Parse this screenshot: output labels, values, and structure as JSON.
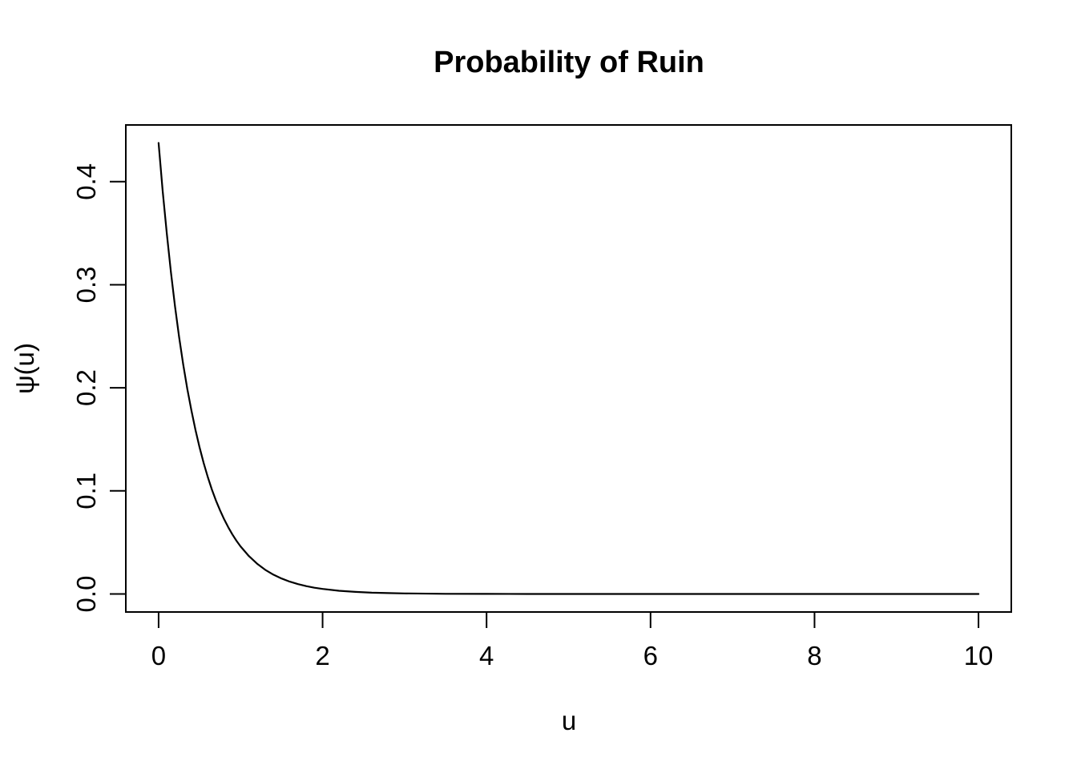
{
  "page": {
    "background": "#ffffff"
  },
  "chart_data": {
    "type": "line",
    "title": "Probability of Ruin",
    "xlabel": "u",
    "ylabel": "ψ(u)",
    "x_ticks": [
      0,
      2,
      4,
      6,
      8,
      10
    ],
    "x_tick_labels": [
      "0",
      "2",
      "4",
      "6",
      "8",
      "10"
    ],
    "y_ticks": [
      0.0,
      0.1,
      0.2,
      0.3,
      0.4
    ],
    "y_tick_labels": [
      "0.0",
      "0.1",
      "0.2",
      "0.3",
      "0.4"
    ],
    "xlim": [
      -0.4,
      10.4
    ],
    "ylim": [
      -0.0175,
      0.455
    ],
    "grid": false,
    "legend_position": "none",
    "line_color": "#000000",
    "text_color": "#000000",
    "background_color": "#ffffff",
    "series": [
      {
        "name": "psi(u)",
        "points": [
          [
            0.0,
            0.4375
          ],
          [
            0.05,
            0.39095
          ],
          [
            0.1,
            0.349351
          ],
          [
            0.15,
            0.312173
          ],
          [
            0.2,
            0.278962
          ],
          [
            0.25,
            0.24928
          ],
          [
            0.3,
            0.222756
          ],
          [
            0.35,
            0.199055
          ],
          [
            0.4,
            0.177874
          ],
          [
            0.45,
            0.158948
          ],
          [
            0.5,
            0.142035
          ],
          [
            0.55,
            0.126922
          ],
          [
            0.6,
            0.113418
          ],
          [
            0.65,
            0.10135
          ],
          [
            0.7,
            0.090566
          ],
          [
            0.75,
            0.08093
          ],
          [
            0.8,
            0.072318
          ],
          [
            0.85,
            0.064624
          ],
          [
            0.9,
            0.057747
          ],
          [
            0.95,
            0.051603
          ],
          [
            1.0,
            0.046112
          ],
          [
            1.1,
            0.036822
          ],
          [
            1.2,
            0.029403
          ],
          [
            1.3,
            0.023479
          ],
          [
            1.4,
            0.018748
          ],
          [
            1.5,
            0.014971
          ],
          [
            1.6,
            0.011954
          ],
          [
            1.7,
            0.009545
          ],
          [
            1.8,
            0.007622
          ],
          [
            1.9,
            0.006086
          ],
          [
            2.0,
            0.00486
          ],
          [
            2.2,
            0.003099
          ],
          [
            2.4,
            0.001976
          ],
          [
            2.6,
            0.00126
          ],
          [
            2.8,
            0.000803
          ],
          [
            3.0,
            0.000512
          ],
          [
            3.5,
            0.000166
          ],
          [
            4.0,
            5.4e-05
          ],
          [
            4.5,
            1.75e-05
          ],
          [
            5.0,
            5.7e-06
          ],
          [
            5.5,
            1.8e-06
          ],
          [
            6.0,
            6e-07
          ],
          [
            6.5,
            2e-07
          ],
          [
            7.0,
            1e-07
          ],
          [
            7.5,
            0.0
          ],
          [
            8.0,
            0.0
          ],
          [
            8.5,
            0.0
          ],
          [
            9.0,
            0.0
          ],
          [
            9.5,
            0.0
          ],
          [
            10.0,
            0.0
          ]
        ]
      }
    ]
  }
}
